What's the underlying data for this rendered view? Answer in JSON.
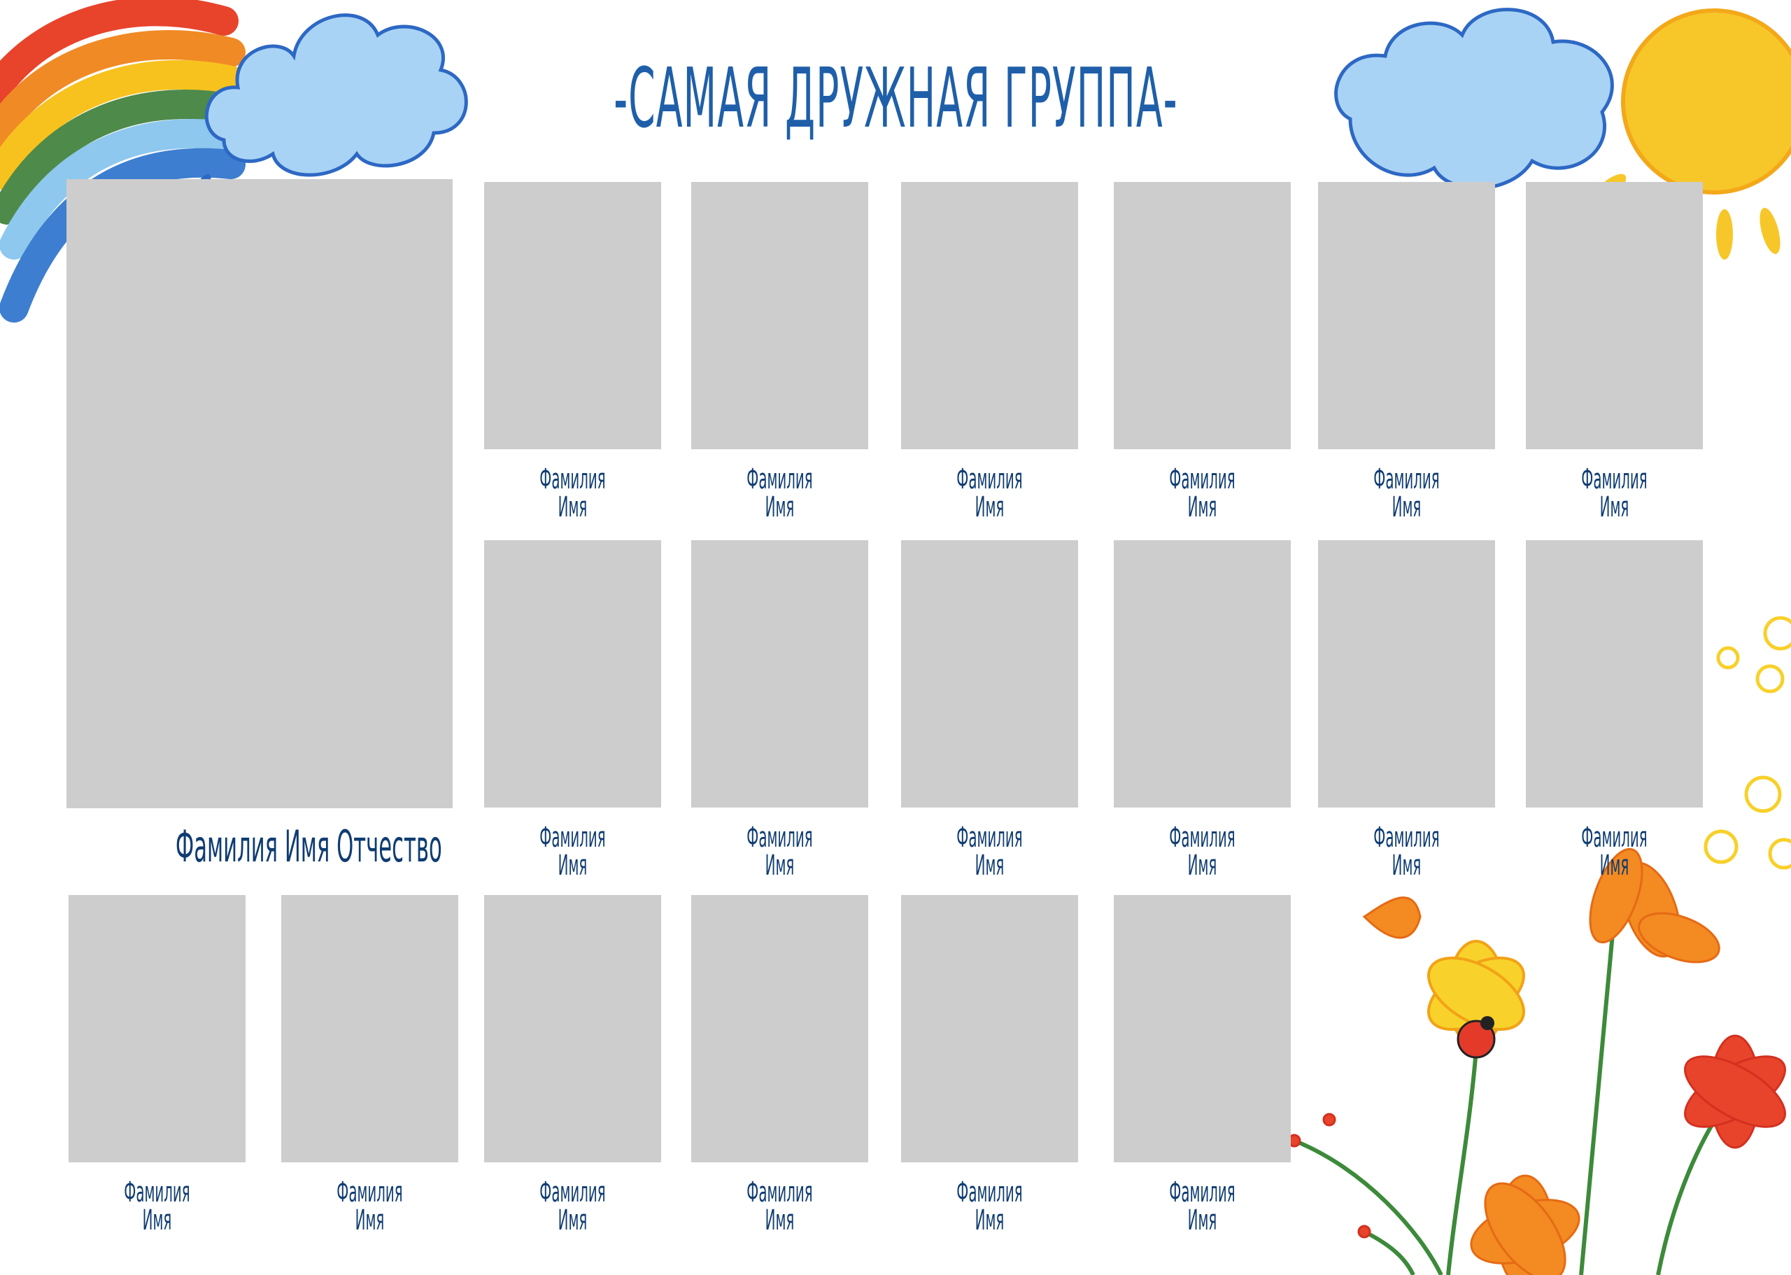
{
  "title": "-САМАЯ ДРУЖНАЯ ГРУППА-",
  "colors": {
    "title": "#1f5fa9",
    "label": "#0f3c72",
    "placeholder": "#cdcdcd"
  },
  "main_photo": {
    "label": "Фамилия Имя Отчество"
  },
  "slots": [
    {
      "surname": "Фамилия",
      "name": "Имя"
    },
    {
      "surname": "Фамилия",
      "name": "Имя"
    },
    {
      "surname": "Фамилия",
      "name": "Имя"
    },
    {
      "surname": "Фамилия",
      "name": "Имя"
    },
    {
      "surname": "Фамилия",
      "name": "Имя"
    },
    {
      "surname": "Фамилия",
      "name": "Имя"
    },
    {
      "surname": "Фамилия",
      "name": "Имя"
    },
    {
      "surname": "Фамилия",
      "name": "Имя"
    },
    {
      "surname": "Фамилия",
      "name": "Имя"
    },
    {
      "surname": "Фамилия",
      "name": "Имя"
    },
    {
      "surname": "Фамилия",
      "name": "Имя"
    },
    {
      "surname": "Фамилия",
      "name": "Имя"
    },
    {
      "surname": "Фамилия",
      "name": "Имя"
    },
    {
      "surname": "Фамилия",
      "name": "Имя"
    },
    {
      "surname": "Фамилия",
      "name": "Имя"
    },
    {
      "surname": "Фамилия",
      "name": "Имя"
    },
    {
      "surname": "Фамилия",
      "name": "Имя"
    },
    {
      "surname": "Фамилия",
      "name": "Имя"
    }
  ],
  "decorations": [
    "rainbow-icon",
    "rain-cloud-icon",
    "cloud-icon",
    "sun-icon",
    "flowers-icon",
    "ladybug-icon"
  ]
}
